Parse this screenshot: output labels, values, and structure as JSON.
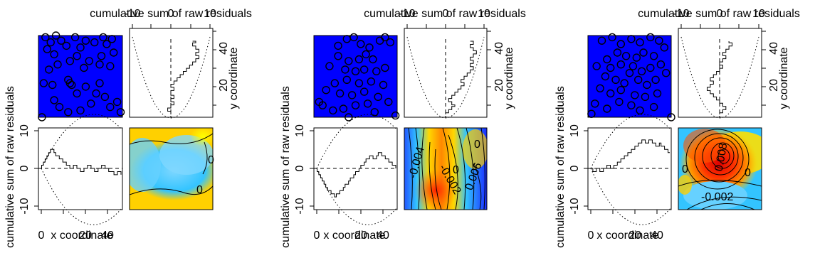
{
  "chart_data": [
    {
      "type": "diagnostic",
      "title": "cumulative sum of raw residuals",
      "ylabel": "cumulative sum of raw residuals",
      "xlabel": "x coordinate",
      "side_label": "y coordinate",
      "x_ticks": [
        "0",
        "20",
        "40"
      ],
      "y_ticks": [
        "20",
        "40"
      ],
      "residual_ticks": [
        "-10",
        "0",
        "10"
      ],
      "contour_labels": [
        "0",
        "0"
      ],
      "points": [
        [
          4,
          47
        ],
        [
          7,
          44
        ],
        [
          10,
          48
        ],
        [
          5,
          40
        ],
        [
          9,
          37
        ],
        [
          13,
          45
        ],
        [
          16,
          42
        ],
        [
          21,
          47
        ],
        [
          24,
          41
        ],
        [
          27,
          45
        ],
        [
          32,
          44
        ],
        [
          37,
          47
        ],
        [
          39,
          43
        ],
        [
          42,
          46
        ],
        [
          43,
          38
        ],
        [
          36,
          36
        ],
        [
          35,
          31
        ],
        [
          41,
          30
        ],
        [
          29,
          33
        ],
        [
          26,
          29
        ],
        [
          22,
          36
        ],
        [
          18,
          33
        ],
        [
          11,
          31
        ],
        [
          6,
          28
        ],
        [
          3,
          20
        ],
        [
          8,
          19
        ],
        [
          17,
          22
        ],
        [
          18,
          20
        ],
        [
          19,
          19
        ],
        [
          22,
          14
        ],
        [
          27,
          18
        ],
        [
          33,
          14
        ],
        [
          35,
          20
        ],
        [
          45,
          9
        ],
        [
          38,
          12
        ],
        [
          41,
          6
        ],
        [
          30,
          8
        ],
        [
          24,
          4
        ],
        [
          17,
          3
        ],
        [
          9,
          10
        ],
        [
          2,
          0
        ],
        [
          47,
          3
        ],
        [
          12,
          6
        ]
      ],
      "x_cumres": [
        0,
        1,
        2,
        3,
        4,
        5,
        6,
        6,
        5,
        4,
        4,
        3,
        3,
        2,
        2,
        1,
        1,
        0,
        0,
        1,
        1,
        0,
        0,
        -1,
        -1,
        0,
        0,
        1,
        1,
        0,
        0,
        -1,
        -1,
        0,
        0,
        1,
        1,
        0,
        0,
        -1,
        -1,
        -1,
        -2,
        -2,
        -1,
        -1,
        -2
      ],
      "y_cumres": [
        0,
        0,
        -1,
        -1,
        0,
        0,
        1,
        1,
        0,
        0,
        1,
        1,
        0,
        0,
        0,
        1,
        1,
        0,
        0,
        1,
        1,
        2,
        2,
        3,
        3,
        4,
        4,
        5,
        5,
        6,
        6,
        7,
        7,
        8,
        8,
        9,
        9,
        8,
        8,
        9,
        9,
        8,
        8,
        7,
        7,
        8,
        7
      ]
    },
    {
      "type": "diagnostic",
      "title": "cumulative sum of raw residuals",
      "ylabel": "cumulative sum of raw residuals",
      "xlabel": "x coordinate",
      "side_label": "y coordinate",
      "x_ticks": [
        "0",
        "20",
        "40"
      ],
      "y_ticks": [
        "20",
        "40"
      ],
      "residual_ticks": [
        "-10",
        "0",
        "10"
      ],
      "contour_labels": [
        "-0.004",
        "0",
        "-0.002",
        "0.006",
        "0"
      ],
      "points": [
        [
          14,
          42
        ],
        [
          19,
          46
        ],
        [
          23,
          47
        ],
        [
          27,
          43
        ],
        [
          32,
          41
        ],
        [
          38,
          45
        ],
        [
          41,
          47
        ],
        [
          44,
          44
        ],
        [
          30,
          37
        ],
        [
          34,
          34
        ],
        [
          26,
          34
        ],
        [
          20,
          33
        ],
        [
          14,
          36
        ],
        [
          9,
          30
        ],
        [
          18,
          28
        ],
        [
          24,
          27
        ],
        [
          29,
          28
        ],
        [
          36,
          27
        ],
        [
          41,
          29
        ],
        [
          40,
          19
        ],
        [
          33,
          21
        ],
        [
          26,
          20
        ],
        [
          19,
          22
        ],
        [
          12,
          20
        ],
        [
          7,
          16
        ],
        [
          15,
          14
        ],
        [
          22,
          13
        ],
        [
          29,
          15
        ],
        [
          37,
          12
        ],
        [
          43,
          9
        ],
        [
          31,
          8
        ],
        [
          24,
          7
        ],
        [
          17,
          5
        ],
        [
          11,
          4
        ],
        [
          5,
          7
        ],
        [
          3,
          9
        ],
        [
          47,
          1
        ],
        [
          35,
          3
        ],
        [
          20,
          0
        ]
      ],
      "x_cumres": [
        0,
        -1,
        -2,
        -3,
        -4,
        -5,
        -6,
        -7,
        -7,
        -8,
        -8,
        -9,
        -8,
        -8,
        -7,
        -7,
        -6,
        -5,
        -5,
        -4,
        -3,
        -3,
        -2,
        -1,
        -1,
        0,
        1,
        1,
        2,
        3,
        3,
        4,
        4,
        3,
        3,
        4,
        5,
        5,
        4,
        4,
        3,
        3,
        2,
        2,
        1,
        1,
        0
      ],
      "y_cumres": [
        0,
        1,
        1,
        2,
        2,
        3,
        2,
        2,
        1,
        1,
        2,
        2,
        3,
        3,
        4,
        4,
        5,
        5,
        6,
        6,
        5,
        5,
        6,
        6,
        7,
        7,
        8,
        8,
        9,
        9,
        8,
        8,
        9,
        9,
        8,
        8,
        9,
        9,
        10,
        10,
        9,
        9,
        8,
        8,
        9,
        9,
        8
      ]
    },
    {
      "type": "diagnostic",
      "title": "cumulative sum of raw residuals",
      "ylabel": "cumulative sum of raw residuals",
      "xlabel": "x coordinate",
      "side_label": "y coordinate",
      "x_ticks": [
        "0",
        "20",
        "40"
      ],
      "y_ticks": [
        "20",
        "40"
      ],
      "residual_ticks": [
        "-10",
        "0",
        "10"
      ],
      "contour_labels": [
        "0",
        "0.008",
        "0",
        "-0.002"
      ],
      "points": [
        [
          8,
          45
        ],
        [
          14,
          47
        ],
        [
          19,
          43
        ],
        [
          25,
          46
        ],
        [
          30,
          44
        ],
        [
          36,
          47
        ],
        [
          41,
          45
        ],
        [
          44,
          41
        ],
        [
          17,
          38
        ],
        [
          22,
          36
        ],
        [
          28,
          35
        ],
        [
          32,
          38
        ],
        [
          38,
          36
        ],
        [
          11,
          34
        ],
        [
          5,
          30
        ],
        [
          13,
          29
        ],
        [
          19,
          31
        ],
        [
          26,
          30
        ],
        [
          24,
          26
        ],
        [
          31,
          27
        ],
        [
          36,
          29
        ],
        [
          42,
          31
        ],
        [
          45,
          26
        ],
        [
          10,
          24
        ],
        [
          16,
          22
        ],
        [
          21,
          20
        ],
        [
          29,
          22
        ],
        [
          34,
          19
        ],
        [
          39,
          22
        ],
        [
          7,
          17
        ],
        [
          13,
          14
        ],
        [
          19,
          16
        ],
        [
          27,
          13
        ],
        [
          33,
          12
        ],
        [
          40,
          14
        ],
        [
          4,
          8
        ],
        [
          11,
          5
        ],
        [
          18,
          9
        ],
        [
          25,
          7
        ],
        [
          30,
          4
        ],
        [
          38,
          6
        ],
        [
          2,
          2
        ],
        [
          48,
          0
        ]
      ],
      "x_cumres": [
        0,
        0,
        -1,
        -1,
        0,
        0,
        -1,
        -1,
        0,
        0,
        1,
        1,
        0,
        0,
        1,
        1,
        2,
        2,
        3,
        3,
        4,
        4,
        5,
        5,
        6,
        6,
        7,
        7,
        8,
        8,
        9,
        9,
        8,
        8,
        9,
        9,
        8,
        8,
        7,
        7,
        8,
        7,
        7,
        6,
        6,
        5,
        5
      ],
      "y_cumres": [
        0,
        1,
        1,
        2,
        2,
        1,
        1,
        0,
        0,
        -1,
        -1,
        -2,
        -2,
        -3,
        -3,
        -4,
        -4,
        -3,
        -3,
        -2,
        -2,
        -3,
        -3,
        -2,
        -2,
        -1,
        -1,
        0,
        0,
        1,
        1,
        0,
        0,
        1,
        1,
        2,
        2,
        1,
        1,
        2,
        2,
        3,
        3,
        4,
        4,
        3,
        3
      ]
    }
  ]
}
